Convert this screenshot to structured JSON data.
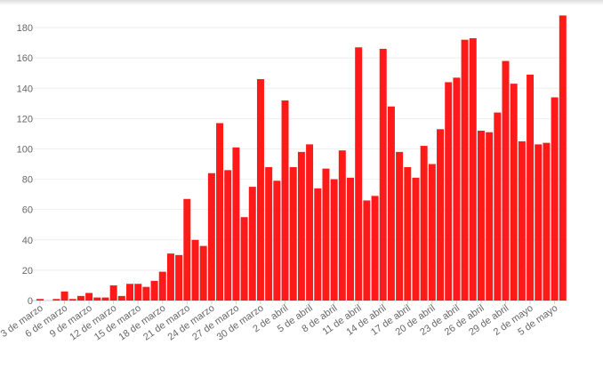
{
  "chart_data": {
    "type": "bar",
    "title": "",
    "xlabel": "",
    "ylabel": "",
    "ylim": [
      0,
      190
    ],
    "yticks": [
      0,
      20,
      40,
      60,
      80,
      100,
      120,
      140,
      160,
      180
    ],
    "grid": true,
    "bar_color": "#ff1a1a",
    "categories": [
      "3 de marzo",
      "4 de marzo",
      "5 de marzo",
      "6 de marzo",
      "7 de marzo",
      "8 de marzo",
      "9 de marzo",
      "10 de marzo",
      "11 de marzo",
      "12 de marzo",
      "13 de marzo",
      "14 de marzo",
      "15 de marzo",
      "16 de marzo",
      "17 de marzo",
      "18 de marzo",
      "19 de marzo",
      "20 de marzo",
      "21 de marzo",
      "22 de marzo",
      "23 de marzo",
      "24 de marzo",
      "25 de marzo",
      "26 de marzo",
      "27 de marzo",
      "28 de marzo",
      "29 de marzo",
      "30 de marzo",
      "31 de marzo",
      "1 de abril",
      "2 de abril",
      "3 de abril",
      "4 de abril",
      "5 de abril",
      "6 de abril",
      "7 de abril",
      "8 de abril",
      "9 de abril",
      "10 de abril",
      "11 de abril",
      "12 de abril",
      "13 de abril",
      "14 de abril",
      "15 de abril",
      "16 de abril",
      "17 de abril",
      "18 de abril",
      "19 de abril",
      "20 de abril",
      "21 de abril",
      "22 de abril",
      "23 de abril",
      "24 de abril",
      "25 de abril",
      "26 de abril",
      "27 de abril",
      "28 de abril",
      "29 de abril",
      "30 de abril",
      "1 de mayo",
      "2 de mayo",
      "3 de mayo",
      "4 de mayo",
      "5 de mayo",
      "6 de mayo"
    ],
    "values": [
      1,
      0,
      1,
      6,
      1,
      3,
      5,
      2,
      2,
      10,
      3,
      11,
      11,
      9,
      13,
      19,
      31,
      30,
      67,
      40,
      36,
      84,
      117,
      86,
      101,
      55,
      75,
      146,
      88,
      79,
      132,
      88,
      98,
      103,
      74,
      87,
      80,
      99,
      81,
      167,
      66,
      69,
      166,
      128,
      98,
      88,
      81,
      102,
      90,
      113,
      144,
      147,
      172,
      173,
      112,
      111,
      124,
      158,
      143,
      105,
      149,
      103,
      104,
      134,
      188
    ],
    "x_tick_labels": [
      "3 de marzo",
      "6 de marzo",
      "9 de marzo",
      "12 de marzo",
      "15 de marzo",
      "18 de marzo",
      "21 de marzo",
      "24 de marzo",
      "27 de marzo",
      "30 de marzo",
      "2 de abril",
      "5 de abril",
      "8 de abril",
      "11 de abril",
      "14 de abril",
      "17 de abril",
      "20 de abril",
      "23 de abril",
      "26 de abril",
      "29 de abril",
      "2 de mayo",
      "5 de mayo"
    ]
  }
}
